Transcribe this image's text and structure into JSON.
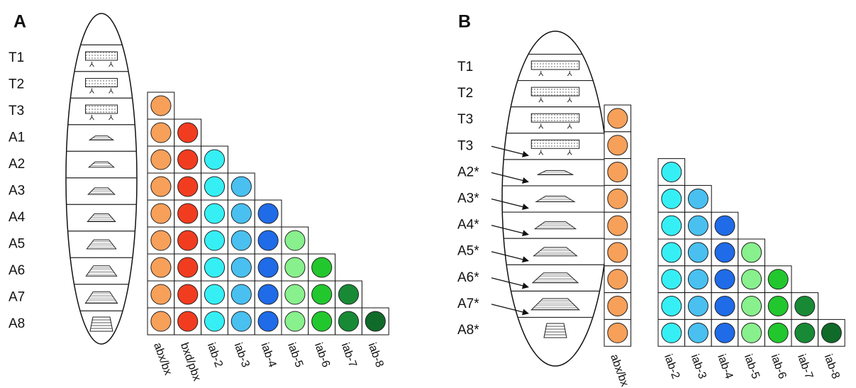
{
  "panels": [
    {
      "label": "A",
      "segments": [
        "T1",
        "T2",
        "T3",
        "A1",
        "A2",
        "A3",
        "A4",
        "A5",
        "A6",
        "A7",
        "A8"
      ],
      "columns": [
        {
          "name": "abx/bx",
          "color": "#f7a05a"
        },
        {
          "name": "bxd/pbx",
          "color": "#f23c20"
        },
        {
          "name": "iab-2",
          "color": "#35eff5"
        },
        {
          "name": "iab-3",
          "color": "#49c0f0"
        },
        {
          "name": "iab-4",
          "color": "#1f6be8"
        },
        {
          "name": "iab-5",
          "color": "#88f08c"
        },
        {
          "name": "iab-6",
          "color": "#22c72e"
        },
        {
          "name": "iab-7",
          "color": "#188a36"
        },
        {
          "name": "iab-8",
          "color": "#106a29"
        }
      ]
    },
    {
      "label": "B",
      "segments": [
        "T1",
        "T2",
        "T3",
        "T3",
        "A2*",
        "A3*",
        "A4*",
        "A5*",
        "A6*",
        "A7*",
        "A8*"
      ],
      "columns": [
        {
          "name": "abx/bx",
          "color": "#f7a05a"
        },
        {
          "name": "iab-2",
          "color": "#35eff5"
        },
        {
          "name": "iab-3",
          "color": "#49c0f0"
        },
        {
          "name": "iab-4",
          "color": "#1f6be8"
        },
        {
          "name": "iab-5",
          "color": "#88f08c"
        },
        {
          "name": "iab-6",
          "color": "#22c72e"
        },
        {
          "name": "iab-7",
          "color": "#188a36"
        },
        {
          "name": "iab-8",
          "color": "#106a29"
        }
      ]
    }
  ]
}
